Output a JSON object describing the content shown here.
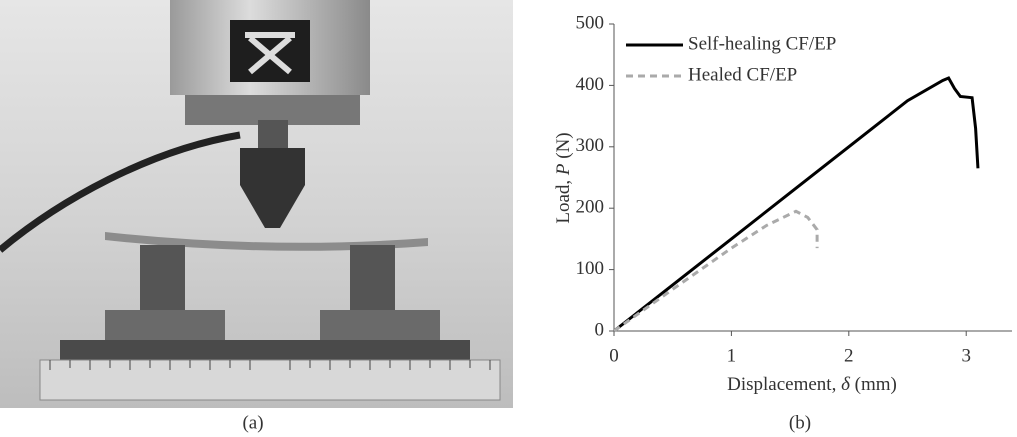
{
  "panels": [
    {
      "caption": "(a)"
    },
    {
      "caption": "(b)"
    }
  ],
  "chart_data": {
    "type": "line",
    "xlabel": [
      "Displacement, ",
      "δ",
      " (mm)"
    ],
    "ylabel": [
      "Load, ",
      "P",
      " (N)"
    ],
    "xlim": [
      0,
      3.39
    ],
    "xticks": [
      0,
      1,
      2,
      3
    ],
    "ylim": [
      0,
      500
    ],
    "yticks": [
      0,
      100,
      200,
      300,
      400,
      500
    ],
    "legend": "upper-left",
    "series": [
      {
        "name": "Self-healing CF/EP",
        "color": "#000000",
        "dash": "solid",
        "x": [
          0,
          0.5,
          1,
          1.5,
          2,
          2.5,
          2.8,
          2.85,
          2.9,
          2.95,
          3.05,
          3.08,
          3.1
        ],
        "values": [
          0,
          75,
          150,
          225,
          300,
          375,
          408,
          412,
          395,
          382,
          380,
          330,
          265
        ]
      },
      {
        "name": "Healed CF/EP",
        "color": "#aaaaaa",
        "dash": "dashed",
        "x": [
          0,
          0.5,
          1,
          1.3,
          1.55,
          1.65,
          1.73,
          1.73
        ],
        "values": [
          0,
          68,
          135,
          172,
          195,
          185,
          165,
          135
        ]
      }
    ]
  }
}
